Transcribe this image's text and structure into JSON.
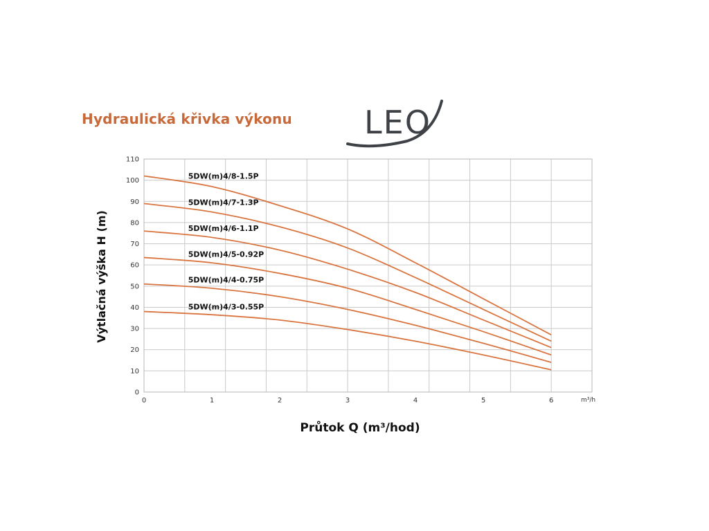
{
  "header": {
    "title": "Hydraulická křivka výkonu",
    "logo_text": "LEO"
  },
  "colors": {
    "title": "#c8693a",
    "curve": "#d9743f",
    "grid": "#c9c9c9",
    "logo": "#3e4246"
  },
  "chart_data": {
    "type": "line",
    "title": "Hydraulická křivka výkonu",
    "xlabel": "Průtok Q (m³/hod)",
    "ylabel": "Výtlačná výška H (m)",
    "x_unit": "m³/h",
    "xlim": [
      0,
      6.6
    ],
    "ylim": [
      0,
      110
    ],
    "x_ticks": [
      0,
      1,
      2,
      3,
      4,
      5,
      6
    ],
    "y_ticks": [
      0,
      10,
      20,
      30,
      40,
      50,
      60,
      70,
      80,
      90,
      100,
      110
    ],
    "grid": true,
    "x": [
      0,
      1,
      2,
      3,
      4,
      5,
      6
    ],
    "series": [
      {
        "name": "5DW(m)4/8-1.5P",
        "values": [
          102,
          97,
          88,
          77,
          61,
          44,
          27
        ]
      },
      {
        "name": "5DW(m)4/7-1.3P",
        "values": [
          89,
          85,
          78,
          68,
          54,
          39,
          24
        ]
      },
      {
        "name": "5DW(m)4/6-1.1P",
        "values": [
          76,
          73,
          67,
          58,
          47,
          34,
          21
        ]
      },
      {
        "name": "5DW(m)4/5-0.92P",
        "values": [
          63.5,
          61,
          56,
          49,
          39,
          28.5,
          17.5
        ]
      },
      {
        "name": "5DW(m)4/4-0.75P",
        "values": [
          51,
          49,
          45,
          39,
          31.5,
          23,
          14
        ]
      },
      {
        "name": "5DW(m)4/3-0.55P",
        "values": [
          38,
          36.5,
          34,
          29.5,
          24,
          17.5,
          10.5
        ]
      }
    ]
  }
}
